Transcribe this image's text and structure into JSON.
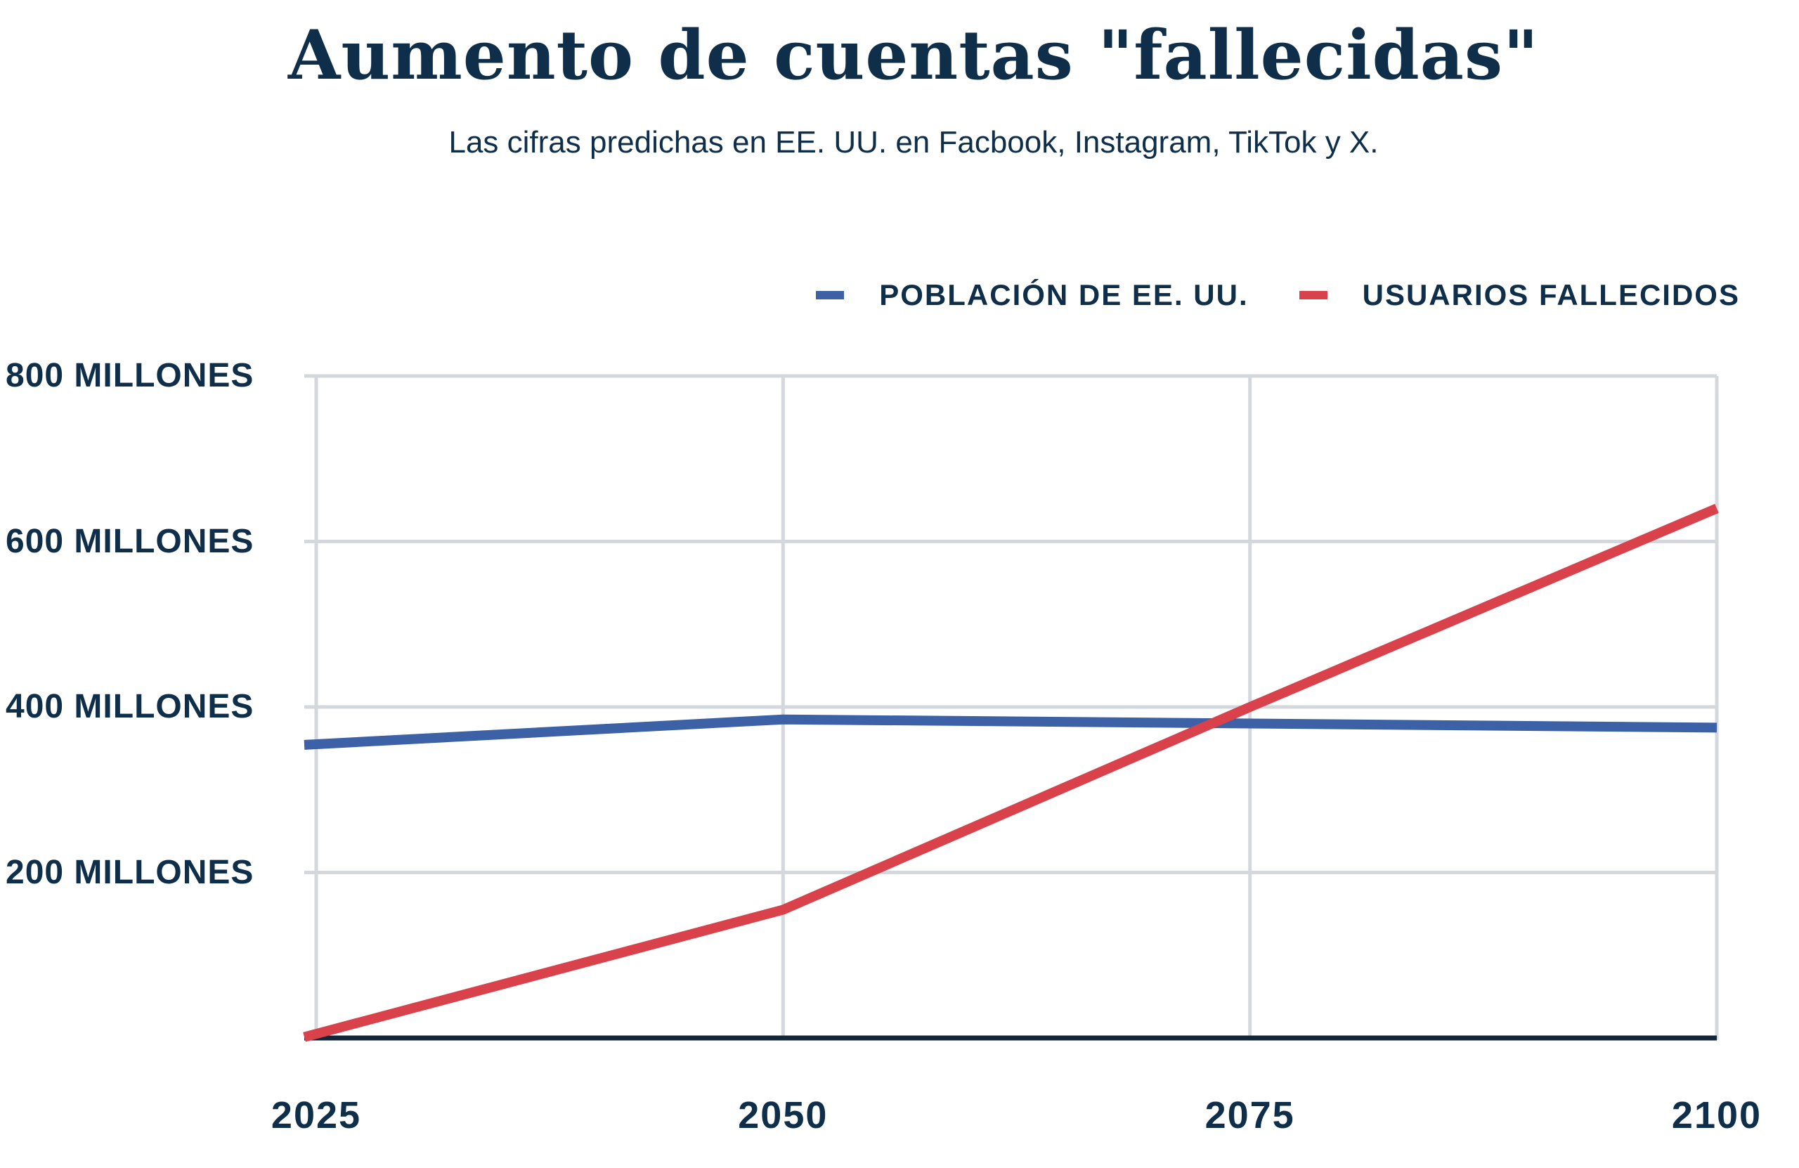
{
  "header": {
    "title": "Aumento de cuentas \"fallecidas\"",
    "subtitle": "Las cifras predichas en EE. UU. en Facbook, Instagram, TikTok y X."
  },
  "colors": {
    "text_navy": "#0e2e49",
    "gridline_gray": "#d4d7dc",
    "axis_navy": "#12263a",
    "population_blue": "#3c61a6",
    "deceased_red": "#d9414b",
    "background": "#ffffff"
  },
  "legend": {
    "items": [
      {
        "label": "POBLACIÓN DE EE. UU.",
        "color": "#3c61a6"
      },
      {
        "label": "USUARIOS FALLECIDOS",
        "color": "#d9414b"
      }
    ]
  },
  "chart_data": {
    "type": "line",
    "title": "Aumento de cuentas \"fallecidas\"",
    "subtitle": "Las cifras predichas en EE. UU. en Facbook, Instagram, TikTok y X.",
    "x": [
      2025,
      2050,
      2075,
      2100
    ],
    "xtick_labels": [
      "2025",
      "2050",
      "2075",
      "2100"
    ],
    "series": [
      {
        "name": "POBLACIÓN DE EE. UU.",
        "color": "#3c61a6",
        "values": [
          355,
          385,
          380,
          375
        ]
      },
      {
        "name": "USUARIOS FALLECIDOS",
        "color": "#d9414b",
        "values": [
          5,
          155,
          400,
          640
        ]
      }
    ],
    "units": "millones",
    "ylim": [
      0,
      800
    ],
    "yticks": [
      {
        "value": 800,
        "label": "800 MILLONES"
      },
      {
        "value": 600,
        "label": "600 MILLONES"
      },
      {
        "value": 400,
        "label": "400 MILLONES"
      },
      {
        "value": 200,
        "label": "200 MILLONES"
      }
    ],
    "grid": true,
    "legend_position": "top-right"
  }
}
